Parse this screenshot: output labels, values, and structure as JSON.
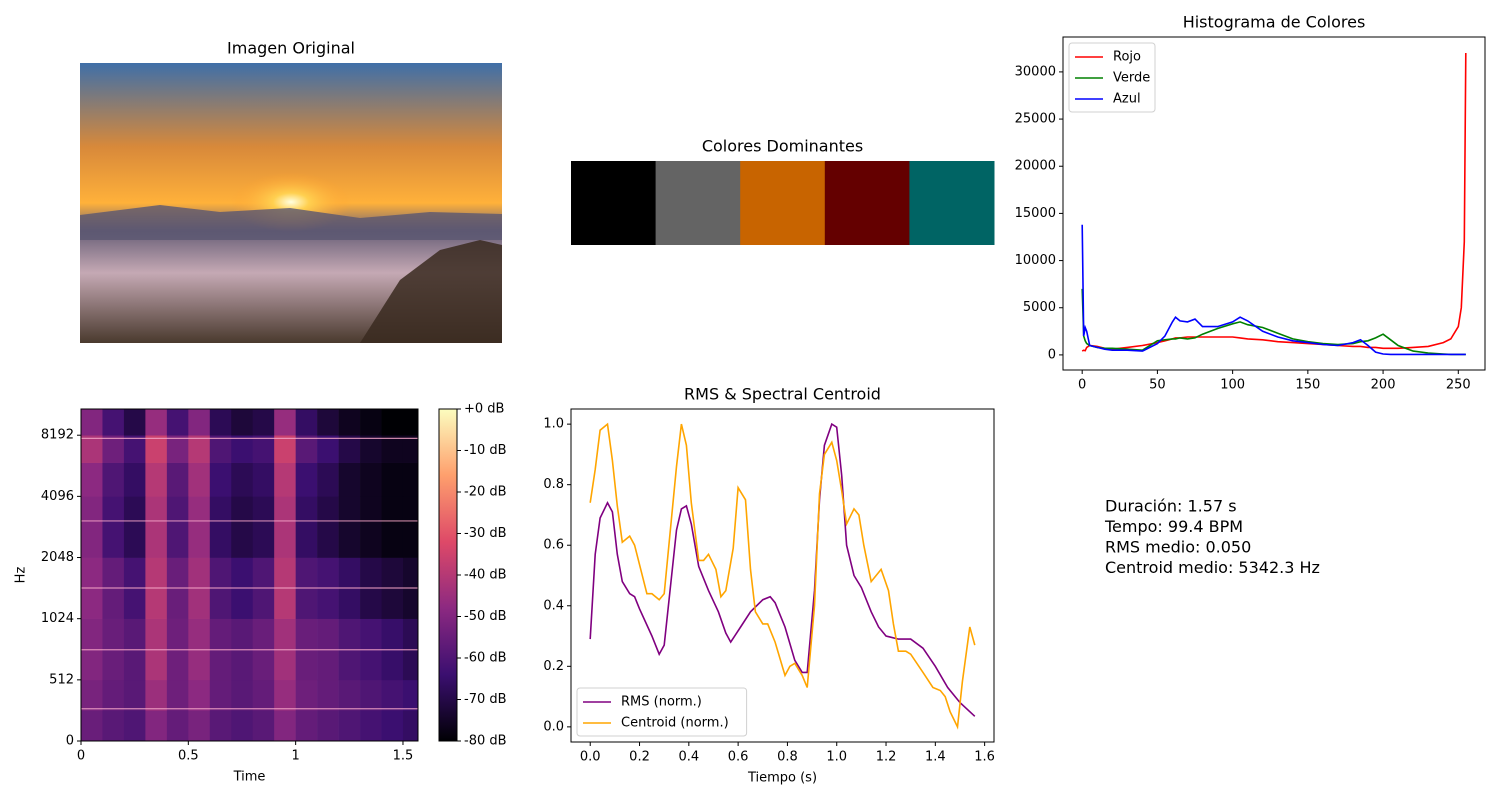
{
  "chart_data": [
    {
      "type": "image",
      "title": "Imagen Original"
    },
    {
      "type": "palette",
      "title": "Colores Dominantes",
      "colors": [
        "#000000",
        "#646464",
        "#c86400",
        "#640000",
        "#006464"
      ]
    },
    {
      "type": "line",
      "title": "Histograma de Colores",
      "legend": "upper left",
      "xlim": [
        -12.75,
        267.75
      ],
      "ylim": [
        -1600,
        33700
      ],
      "xticks": [
        0,
        50,
        100,
        150,
        200,
        250
      ],
      "yticks": [
        0,
        5000,
        10000,
        15000,
        20000,
        25000,
        30000
      ],
      "series": [
        {
          "name": "Rojo",
          "color": "#ff0000",
          "x": [
            0,
            1,
            2,
            3,
            5,
            10,
            15,
            20,
            30,
            40,
            50,
            55,
            60,
            62,
            65,
            70,
            75,
            80,
            90,
            100,
            105,
            110,
            120,
            130,
            140,
            150,
            160,
            170,
            180,
            185,
            190,
            195,
            200,
            205,
            210,
            220,
            230,
            240,
            245,
            250,
            252,
            254,
            255
          ],
          "values": [
            400,
            500,
            450,
            800,
            1000,
            900,
            700,
            600,
            800,
            1000,
            1300,
            1500,
            1700,
            1800,
            1800,
            1900,
            1900,
            1900,
            1900,
            1900,
            1800,
            1700,
            1600,
            1400,
            1300,
            1200,
            1100,
            1000,
            900,
            900,
            800,
            800,
            700,
            700,
            700,
            800,
            900,
            1300,
            1700,
            3000,
            5000,
            12000,
            32000
          ]
        },
        {
          "name": "Verde",
          "color": "#008000",
          "x": [
            0,
            1,
            2,
            3,
            5,
            10,
            15,
            20,
            30,
            40,
            50,
            55,
            60,
            62,
            65,
            70,
            75,
            80,
            90,
            100,
            105,
            110,
            120,
            130,
            140,
            150,
            160,
            170,
            180,
            185,
            190,
            195,
            200,
            205,
            210,
            220,
            230,
            240,
            245,
            250,
            252,
            254,
            255
          ],
          "values": [
            7000,
            2000,
            1500,
            1200,
            1000,
            800,
            700,
            700,
            600,
            500,
            1500,
            1600,
            1700,
            1700,
            1800,
            1700,
            1800,
            2200,
            2800,
            3300,
            3500,
            3200,
            2900,
            2300,
            1700,
            1400,
            1200,
            1100,
            1200,
            1400,
            1500,
            1800,
            2200,
            1600,
            1000,
            400,
            200,
            100,
            50,
            50,
            50,
            50,
            50
          ]
        },
        {
          "name": "Azul",
          "color": "#0000ff",
          "x": [
            0,
            1,
            2,
            3,
            5,
            10,
            15,
            20,
            30,
            40,
            50,
            55,
            60,
            62,
            65,
            70,
            75,
            80,
            90,
            100,
            105,
            110,
            120,
            130,
            140,
            150,
            160,
            170,
            180,
            185,
            190,
            195,
            200,
            205,
            210,
            220,
            230,
            240,
            245,
            250,
            252,
            254,
            255
          ],
          "values": [
            13800,
            2000,
            2900,
            2500,
            1000,
            800,
            600,
            500,
            500,
            400,
            1200,
            2000,
            3500,
            4000,
            3600,
            3500,
            3800,
            3000,
            3000,
            3500,
            4000,
            3600,
            2500,
            1900,
            1500,
            1300,
            1100,
            1000,
            1300,
            1600,
            1000,
            300,
            100,
            50,
            50,
            50,
            50,
            50,
            50,
            50,
            50,
            50,
            50
          ]
        }
      ]
    },
    {
      "type": "spectrogram",
      "x_label": "Time",
      "y_label": "Hz",
      "xlim": [
        0,
        1.57
      ],
      "ylim": [
        0,
        11025
      ],
      "yscale": "log",
      "linthresh": 512,
      "xticks": [
        0,
        0.5,
        1,
        1.5
      ],
      "yticks": [
        0,
        512,
        1024,
        2048,
        4096,
        8192
      ],
      "clim": [
        -80,
        0
      ],
      "cticks": [
        {
          "value": 0,
          "label": "+0 dB"
        },
        {
          "value": -10,
          "label": "-10 dB"
        },
        {
          "value": -20,
          "label": "-20 dB"
        },
        {
          "value": -30,
          "label": "-30 dB"
        },
        {
          "value": -40,
          "label": "-40 dB"
        },
        {
          "value": -50,
          "label": "-50 dB"
        },
        {
          "value": -60,
          "label": "-60 dB"
        },
        {
          "value": -70,
          "label": "-70 dB"
        },
        {
          "value": -80,
          "label": "-80 dB"
        }
      ],
      "colormap": [
        "#000004",
        "#3b0f70",
        "#8c2981",
        "#de4968",
        "#fe9f6d",
        "#fcfdbf"
      ],
      "x_edges": [
        0,
        0.1,
        0.2,
        0.3,
        0.4,
        0.5,
        0.6,
        0.7,
        0.8,
        0.9,
        1.0,
        1.1,
        1.2,
        1.3,
        1.4,
        1.5,
        1.57
      ],
      "y_edges": [
        0,
        256,
        512,
        1024,
        2048,
        4096,
        6000,
        8192,
        11025
      ],
      "values": [
        [
          -55,
          -58,
          -60,
          -50,
          -56,
          -52,
          -58,
          -60,
          -58,
          -50,
          -56,
          -58,
          -60,
          -62,
          -64,
          -66
        ],
        [
          -52,
          -56,
          -58,
          -45,
          -54,
          -48,
          -56,
          -58,
          -56,
          -46,
          -54,
          -56,
          -58,
          -60,
          -62,
          -64
        ],
        [
          -50,
          -55,
          -58,
          -42,
          -54,
          -46,
          -56,
          -58,
          -55,
          -44,
          -55,
          -56,
          -60,
          -62,
          -65,
          -68
        ],
        [
          -48,
          -56,
          -62,
          -40,
          -55,
          -44,
          -60,
          -64,
          -60,
          -40,
          -60,
          -62,
          -66,
          -70,
          -72,
          -74
        ],
        [
          -50,
          -62,
          -68,
          -42,
          -60,
          -46,
          -66,
          -70,
          -68,
          -42,
          -66,
          -70,
          -74,
          -76,
          -78,
          -78
        ],
        [
          -48,
          -60,
          -66,
          -40,
          -58,
          -44,
          -64,
          -68,
          -66,
          -40,
          -64,
          -68,
          -74,
          -76,
          -78,
          -78
        ],
        [
          -42,
          -54,
          -62,
          -36,
          -52,
          -40,
          -60,
          -64,
          -62,
          -36,
          -58,
          -64,
          -70,
          -74,
          -76,
          -76
        ],
        [
          -50,
          -62,
          -70,
          -46,
          -62,
          -50,
          -68,
          -72,
          -70,
          -46,
          -66,
          -72,
          -76,
          -78,
          -80,
          -80
        ]
      ],
      "lines_hz": [
        270,
        720,
        1450,
        3100,
        7900
      ]
    },
    {
      "type": "line",
      "title": "RMS & Spectral Centroid",
      "x_label": "Tiempo (s)",
      "legend": "lower left",
      "xlim": [
        -0.078,
        1.638
      ],
      "ylim": [
        -0.05,
        1.05
      ],
      "xticks": [
        {
          "value": 0,
          "label": "0.0"
        },
        {
          "value": 0.2,
          "label": "0.2"
        },
        {
          "value": 0.4,
          "label": "0.4"
        },
        {
          "value": 0.6,
          "label": "0.6"
        },
        {
          "value": 0.8,
          "label": "0.8"
        },
        {
          "value": 1,
          "label": "1.0"
        },
        {
          "value": 1.2,
          "label": "1.2"
        },
        {
          "value": 1.4,
          "label": "1.4"
        },
        {
          "value": 1.6,
          "label": "1.6"
        }
      ],
      "yticks": [
        {
          "value": 0,
          "label": "0.0"
        },
        {
          "value": 0.2,
          "label": "0.2"
        },
        {
          "value": 0.4,
          "label": "0.4"
        },
        {
          "value": 0.6,
          "label": "0.6"
        },
        {
          "value": 0.8,
          "label": "0.8"
        },
        {
          "value": 1,
          "label": "1.0"
        }
      ],
      "series": [
        {
          "name": "RMS (norm.)",
          "color": "#800080",
          "x": [
            0,
            0.02,
            0.04,
            0.07,
            0.09,
            0.11,
            0.13,
            0.16,
            0.18,
            0.2,
            0.25,
            0.28,
            0.3,
            0.35,
            0.37,
            0.39,
            0.41,
            0.44,
            0.48,
            0.52,
            0.55,
            0.57,
            0.61,
            0.65,
            0.7,
            0.73,
            0.75,
            0.79,
            0.83,
            0.86,
            0.88,
            0.91,
            0.93,
            0.95,
            0.98,
            1.0,
            1.02,
            1.04,
            1.07,
            1.1,
            1.14,
            1.17,
            1.2,
            1.25,
            1.3,
            1.35,
            1.4,
            1.45,
            1.5,
            1.56
          ],
          "values": [
            0.29,
            0.57,
            0.69,
            0.74,
            0.71,
            0.57,
            0.48,
            0.44,
            0.43,
            0.39,
            0.3,
            0.24,
            0.27,
            0.65,
            0.72,
            0.73,
            0.67,
            0.53,
            0.45,
            0.38,
            0.31,
            0.28,
            0.33,
            0.38,
            0.42,
            0.43,
            0.41,
            0.33,
            0.22,
            0.18,
            0.18,
            0.45,
            0.75,
            0.93,
            1.0,
            0.99,
            0.83,
            0.6,
            0.5,
            0.46,
            0.38,
            0.33,
            0.3,
            0.29,
            0.29,
            0.26,
            0.2,
            0.13,
            0.08,
            0.035
          ]
        },
        {
          "name": "Centroid (norm.)",
          "color": "#ffa500",
          "x": [
            0,
            0.02,
            0.04,
            0.07,
            0.09,
            0.11,
            0.13,
            0.16,
            0.18,
            0.23,
            0.25,
            0.28,
            0.3,
            0.35,
            0.37,
            0.39,
            0.41,
            0.44,
            0.46,
            0.48,
            0.51,
            0.53,
            0.55,
            0.58,
            0.6,
            0.63,
            0.65,
            0.67,
            0.7,
            0.72,
            0.75,
            0.79,
            0.81,
            0.83,
            0.86,
            0.88,
            0.91,
            0.93,
            0.95,
            0.98,
            1.0,
            1.02,
            1.04,
            1.07,
            1.09,
            1.11,
            1.14,
            1.18,
            1.21,
            1.23,
            1.25,
            1.28,
            1.3,
            1.35,
            1.39,
            1.42,
            1.44,
            1.46,
            1.49,
            1.51,
            1.54,
            1.56
          ],
          "values": [
            0.74,
            0.85,
            0.98,
            1.0,
            0.88,
            0.73,
            0.61,
            0.63,
            0.6,
            0.44,
            0.44,
            0.42,
            0.44,
            0.86,
            1.0,
            0.93,
            0.74,
            0.55,
            0.55,
            0.57,
            0.52,
            0.43,
            0.45,
            0.59,
            0.79,
            0.75,
            0.52,
            0.38,
            0.34,
            0.34,
            0.28,
            0.17,
            0.2,
            0.21,
            0.17,
            0.13,
            0.4,
            0.77,
            0.9,
            0.94,
            0.88,
            0.78,
            0.67,
            0.72,
            0.7,
            0.6,
            0.48,
            0.52,
            0.45,
            0.34,
            0.25,
            0.25,
            0.24,
            0.18,
            0.13,
            0.12,
            0.1,
            0.05,
            0.0,
            0.15,
            0.33,
            0.27
          ]
        }
      ]
    },
    {
      "type": "text",
      "lines": [
        "Duración: 1.57 s",
        "Tempo: 99.4 BPM",
        "RMS medio: 0.050",
        "Centroid medio: 5342.3 Hz"
      ]
    }
  ]
}
